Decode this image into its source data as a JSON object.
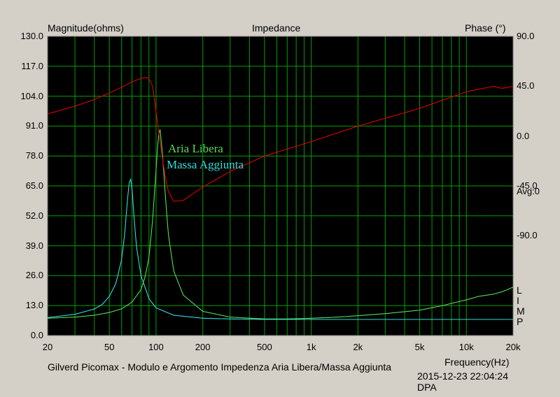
{
  "chart_data": {
    "type": "line",
    "title": "Impedance",
    "ylabel_left": "Magnitude(ohms)",
    "ylabel_right": "Phase (°)",
    "xlabel": "Frequency(Hz)",
    "xscale": "log",
    "xlim": [
      20,
      20000
    ],
    "ylim_left": [
      0,
      130
    ],
    "ylim_right": [
      -180,
      90
    ],
    "grid": true,
    "x_ticks": [
      20,
      50,
      100,
      200,
      500,
      1000,
      2000,
      5000,
      10000,
      20000
    ],
    "x_tick_labels": [
      "20",
      "50",
      "100",
      "200",
      "500",
      "1k",
      "2k",
      "5k",
      "10k",
      "20k"
    ],
    "y_ticks_left": [
      "0.0",
      "13.0",
      "26.0",
      "39.0",
      "52.0",
      "65.0",
      "78.0",
      "91.0",
      "104.0",
      "117.0",
      "130.0"
    ],
    "y_ticks_right": [
      "90.0",
      "45.0",
      "0.0",
      "-45.0",
      "-90.0"
    ],
    "right_annotation": "Avg:0",
    "limp_label": [
      "L",
      "I",
      "M",
      "P"
    ],
    "footer_caption": "Gilverd Picomax - Modulo e Argomento Impedenza Aria Libera/Massa Aggiunta",
    "timestamp": "2015-12-23 22:04:24",
    "software": "DPA",
    "colors": {
      "background": "#000000",
      "grid": "#00a000",
      "aria_libera": "#55dd55",
      "massa_aggiunta": "#33dddd",
      "phase": "#dd0000",
      "panel": "#d4d0c8"
    },
    "series": [
      {
        "name": "Aria Libera",
        "axis": "left",
        "x": [
          20,
          30,
          40,
          50,
          60,
          70,
          80,
          85,
          90,
          95,
          100,
          103,
          106,
          110,
          115,
          120,
          130,
          150,
          200,
          300,
          500,
          700,
          1000,
          1500,
          2000,
          3000,
          5000,
          7000,
          10000,
          12000,
          15000,
          17000,
          20000
        ],
        "values": [
          7.5,
          8.0,
          8.8,
          10.0,
          11.6,
          14.5,
          20.0,
          25.5,
          34.0,
          50.0,
          72.0,
          85.0,
          90.0,
          79.0,
          60.0,
          44.0,
          28.0,
          17.5,
          10.5,
          8.0,
          7.2,
          7.2,
          7.5,
          8.0,
          8.6,
          9.5,
          11.0,
          13.0,
          15.5,
          17.0,
          18.0,
          19.0,
          21.0
        ]
      },
      {
        "name": "Massa Aggiunta",
        "axis": "left",
        "x": [
          20,
          30,
          40,
          45,
          50,
          55,
          60,
          63,
          65,
          67,
          68.5,
          70,
          72,
          75,
          80,
          90,
          100,
          130,
          200,
          300,
          500
        ],
        "values": [
          7.8,
          9.2,
          11.5,
          13.5,
          17.0,
          22.5,
          33.0,
          45.0,
          57.0,
          66.0,
          68.0,
          64.0,
          52.0,
          38.0,
          26.0,
          16.0,
          12.0,
          8.8,
          7.5,
          7.2,
          7.0
        ]
      },
      {
        "name": "Phase",
        "axis": "right",
        "x": [
          20,
          30,
          40,
          50,
          60,
          70,
          80,
          85,
          90,
          95,
          100,
          105,
          110,
          115,
          120,
          130,
          150,
          200,
          300,
          500,
          1000,
          2000,
          5000,
          10000,
          15000,
          17000,
          20000
        ],
        "values": [
          20,
          27,
          33,
          39,
          44,
          49,
          52,
          53,
          52,
          45,
          22,
          0,
          -20,
          -38,
          -50,
          -59,
          -58,
          -46,
          -32,
          -18,
          -5,
          9,
          25,
          40,
          45,
          43,
          45
        ]
      }
    ]
  }
}
